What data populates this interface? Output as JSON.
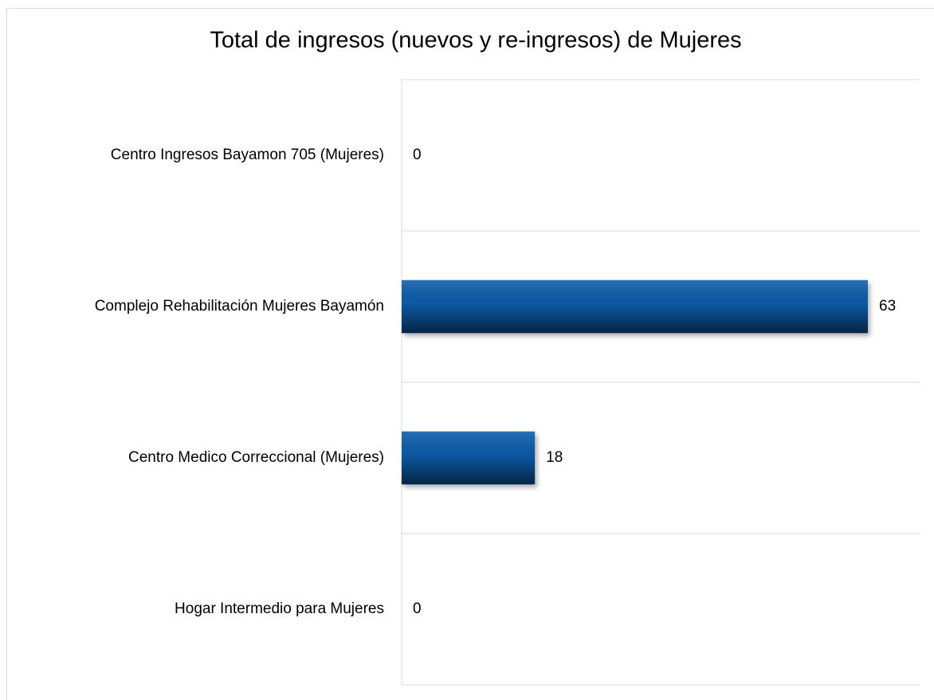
{
  "chart_data": {
    "type": "bar",
    "orientation": "horizontal",
    "title": "Total de ingresos (nuevos y re-ingresos) de Mujeres",
    "categories": [
      "Centro Ingresos Bayamon 705 (Mujeres)",
      "Complejo Rehabilitación Mujeres Bayamón",
      "Centro Medico Correccional (Mujeres)",
      "Hogar Intermedio para Mujeres"
    ],
    "values": [
      0,
      63,
      18,
      0
    ],
    "color": "#0b5cab",
    "xlim": [
      0,
      70
    ]
  }
}
